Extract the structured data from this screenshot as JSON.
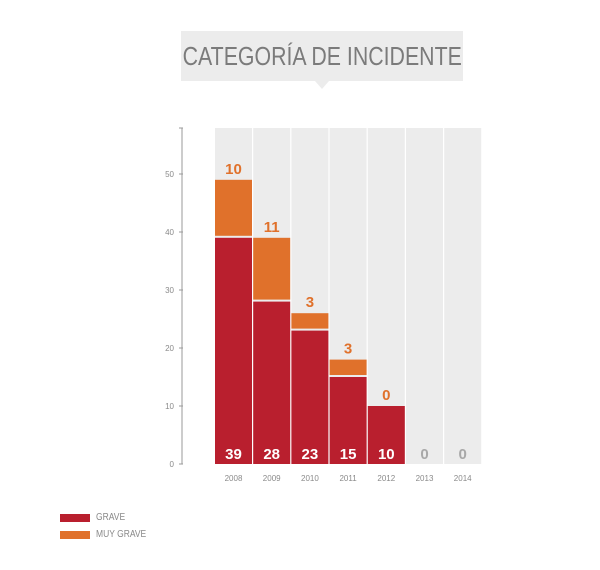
{
  "title": "CATEGORÍA DE INCIDENTE",
  "chart_data": {
    "type": "bar",
    "stacked": true,
    "categories": [
      "2008",
      "2009",
      "2010",
      "2011",
      "2012",
      "2013",
      "2014"
    ],
    "series": [
      {
        "name": "GRAVE",
        "values": [
          39,
          28,
          23,
          15,
          10,
          0,
          0
        ]
      },
      {
        "name": "MUY GRAVE",
        "values": [
          10,
          11,
          3,
          3,
          0,
          0,
          0
        ]
      }
    ],
    "y_ticks": [
      "0",
      "10",
      "20",
      "30",
      "40",
      "50"
    ],
    "ylim": [
      0,
      56
    ],
    "legend_position": "bottom-left",
    "colors": {
      "grave": "#b91f2e",
      "muy_grave": "#e0712b",
      "column_bg": "#ececec",
      "zero_label": "#a8a8a8",
      "axis": "#9a9a9a",
      "tick_label": "#8a8a8a"
    }
  },
  "legend": [
    {
      "label": "GRAVE",
      "color": "#b91f2e"
    },
    {
      "label": "MUY GRAVE",
      "color": "#e0712b"
    }
  ]
}
